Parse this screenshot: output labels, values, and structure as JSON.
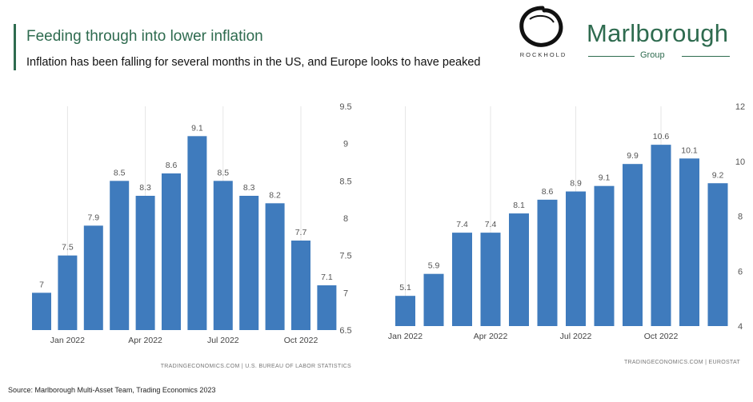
{
  "header": {
    "title": "Feeding through into lower inflation",
    "subtitle": "Inflation has been falling for several months in the US, and Europe looks to have peaked"
  },
  "logos": {
    "rockhold": "ROCKHOLD",
    "marlborough": "Marlborough",
    "marlborough_group": "Group"
  },
  "footer": {
    "source": "Source: Marlborough Multi-Asset Team, Trading Economics 2023"
  },
  "colors": {
    "bar": "#3f7bbd",
    "accent": "#2e6b4f"
  },
  "chart_data": [
    {
      "type": "bar",
      "categories": [
        "Dec 2021",
        "Jan 2022",
        "Feb 2022",
        "Mar 2022",
        "Apr 2022",
        "May 2022",
        "Jun 2022",
        "Jul 2022",
        "Aug 2022",
        "Sep 2022",
        "Oct 2022",
        "Nov 2022"
      ],
      "values": [
        7,
        7.5,
        7.9,
        8.5,
        8.3,
        8.6,
        9.1,
        8.5,
        8.3,
        8.2,
        7.7,
        7.1
      ],
      "value_labels": [
        "7",
        "7.5",
        "7.9",
        "8.5",
        "8.3",
        "8.6",
        "9.1",
        "8.5",
        "8.3",
        "8.2",
        "7.7",
        "7.1"
      ],
      "ylim": [
        6.5,
        9.5
      ],
      "yticks": [
        "9.5",
        "9",
        "8.5",
        "8",
        "7.5",
        "7",
        "6.5"
      ],
      "ytick_values": [
        9.5,
        9,
        8.5,
        8,
        7.5,
        7,
        6.5
      ],
      "xtick_labels": [
        {
          "index": 1,
          "label": "Jan 2022"
        },
        {
          "index": 4,
          "label": "Apr 2022"
        },
        {
          "index": 7,
          "label": "Jul 2022"
        },
        {
          "index": 10,
          "label": "Oct 2022"
        }
      ],
      "credit": "TRADINGECONOMICS.COM | U.S. BUREAU OF LABOR STATISTICS",
      "grid": true,
      "y_axis_side": "right"
    },
    {
      "type": "bar",
      "categories": [
        "Jan 2022",
        "Feb 2022",
        "Mar 2022",
        "Apr 2022",
        "May 2022",
        "Jun 2022",
        "Jul 2022",
        "Aug 2022",
        "Sep 2022",
        "Oct 2022",
        "Nov 2022",
        "Dec 2022"
      ],
      "values": [
        5.1,
        5.9,
        7.4,
        7.4,
        8.1,
        8.6,
        8.9,
        9.1,
        9.9,
        10.6,
        10.1,
        9.2
      ],
      "value_labels": [
        "5.1",
        "5.9",
        "7.4",
        "7.4",
        "8.1",
        "8.6",
        "8.9",
        "9.1",
        "9.9",
        "10.6",
        "10.1",
        "9.2"
      ],
      "ylim": [
        4,
        12
      ],
      "yticks": [
        "12",
        "10",
        "8",
        "6",
        "4"
      ],
      "ytick_values": [
        12,
        10,
        8,
        6,
        4
      ],
      "xtick_labels": [
        {
          "index": 0,
          "label": "Jan 2022"
        },
        {
          "index": 3,
          "label": "Apr 2022"
        },
        {
          "index": 6,
          "label": "Jul 2022"
        },
        {
          "index": 9,
          "label": "Oct 2022"
        }
      ],
      "credit": "TRADINGECONOMICS.COM | EUROSTAT",
      "grid": true,
      "y_axis_side": "right"
    }
  ]
}
